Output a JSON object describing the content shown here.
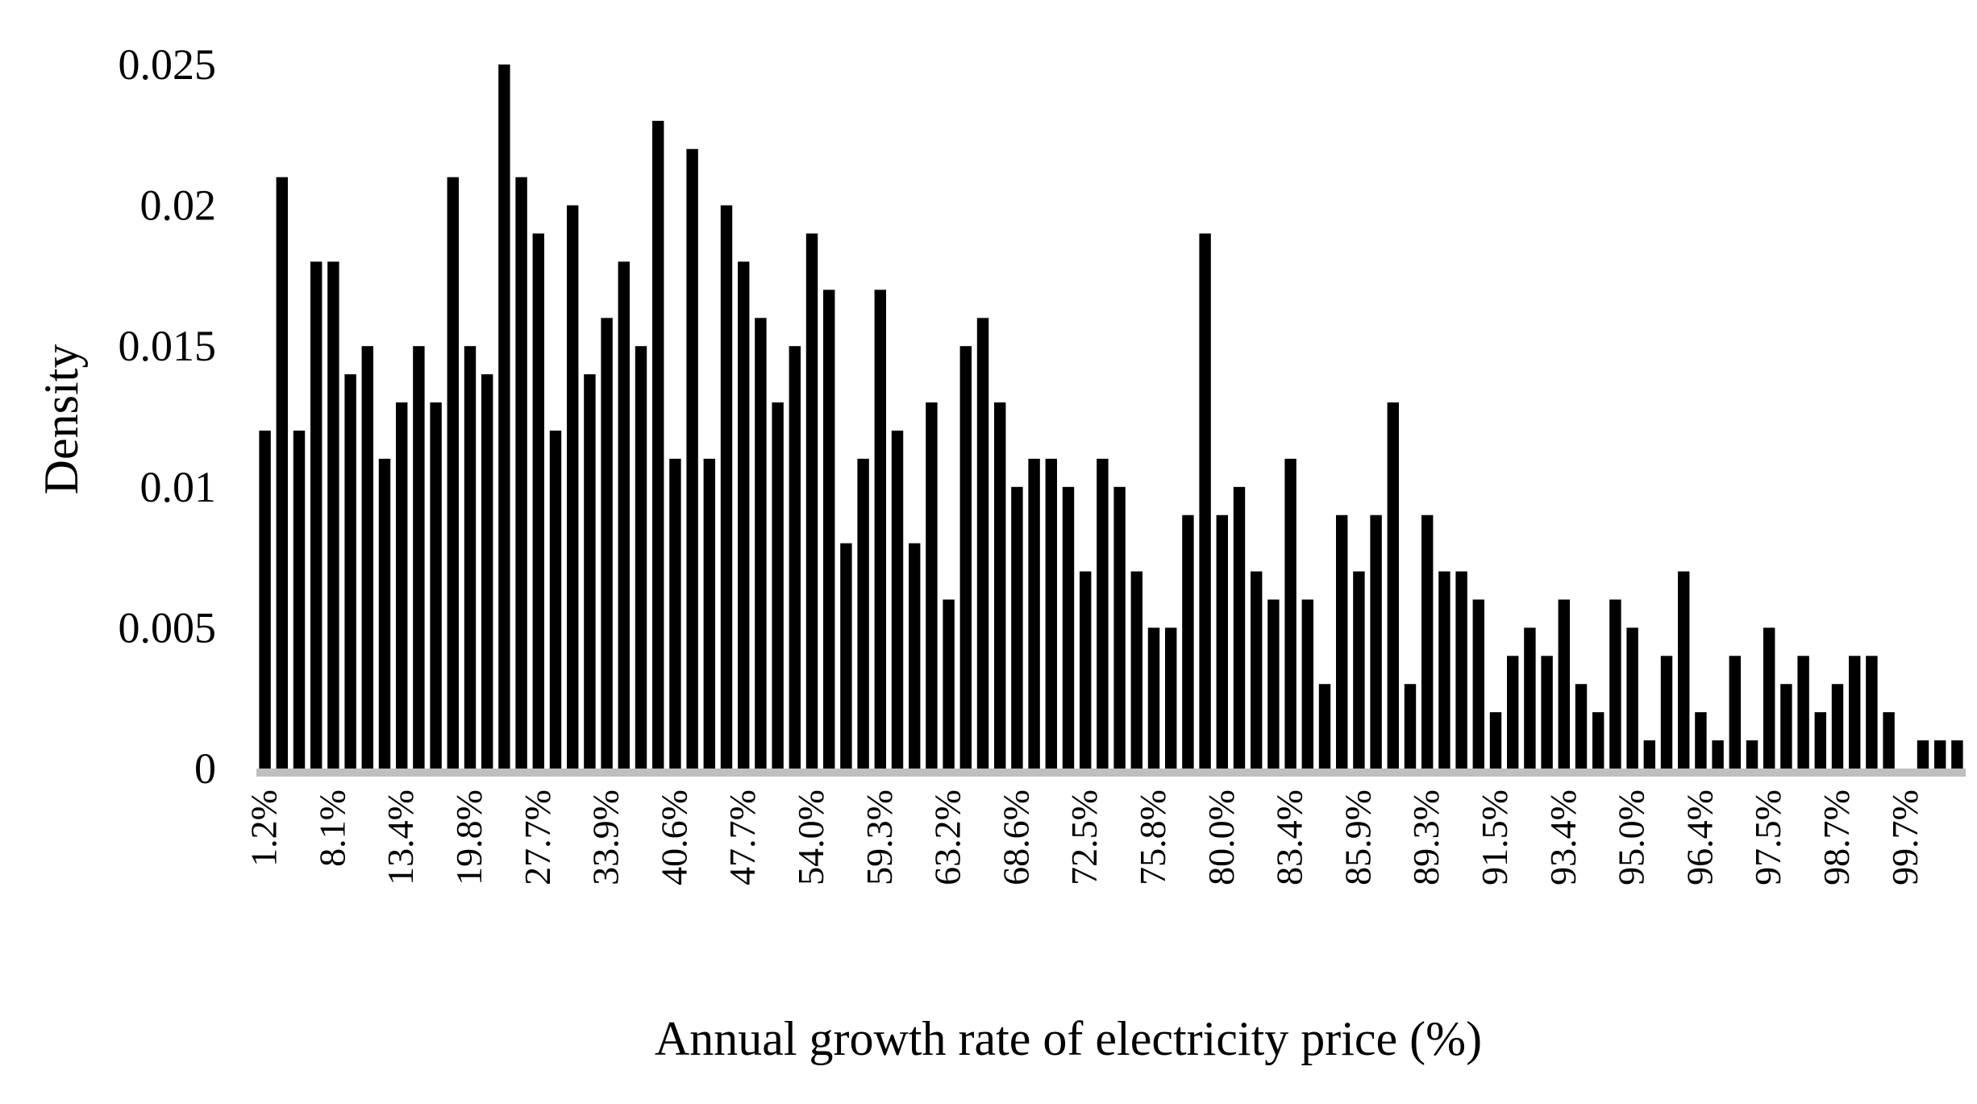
{
  "chart_data": {
    "type": "bar",
    "title": "",
    "xlabel": "Annual growth rate of electricity price (%)",
    "ylabel": "Density",
    "ylim": [
      0,
      0.025
    ],
    "yticks": [
      "0",
      "0.005",
      "0.01",
      "0.015",
      "0.02",
      "0.025"
    ],
    "ytick_values": [
      0,
      0.005,
      0.01,
      0.015,
      0.02,
      0.025
    ],
    "xtick_labels": [
      "1.2%",
      "8.1%",
      "13.4%",
      "19.8%",
      "27.7%",
      "33.9%",
      "40.6%",
      "47.7%",
      "54.0%",
      "59.3%",
      "63.2%",
      "68.6%",
      "72.5%",
      "75.8%",
      "80.0%",
      "83.4%",
      "85.9%",
      "89.3%",
      "91.5%",
      "93.4%",
      "95.0%",
      "96.4%",
      "97.5%",
      "98.7%",
      "99.7%"
    ],
    "label_every": 4,
    "values": [
      0.012,
      0.021,
      0.012,
      0.018,
      0.018,
      0.014,
      0.015,
      0.011,
      0.013,
      0.015,
      0.013,
      0.021,
      0.015,
      0.014,
      0.025,
      0.021,
      0.019,
      0.012,
      0.02,
      0.014,
      0.016,
      0.018,
      0.015,
      0.023,
      0.011,
      0.022,
      0.011,
      0.02,
      0.018,
      0.016,
      0.013,
      0.015,
      0.019,
      0.017,
      0.008,
      0.011,
      0.017,
      0.012,
      0.008,
      0.013,
      0.006,
      0.015,
      0.016,
      0.013,
      0.01,
      0.011,
      0.011,
      0.01,
      0.007,
      0.011,
      0.01,
      0.007,
      0.005,
      0.005,
      0.009,
      0.019,
      0.009,
      0.01,
      0.007,
      0.006,
      0.011,
      0.006,
      0.003,
      0.009,
      0.007,
      0.009,
      0.013,
      0.003,
      0.009,
      0.007,
      0.007,
      0.006,
      0.002,
      0.004,
      0.005,
      0.004,
      0.006,
      0.003,
      0.002,
      0.006,
      0.005,
      0.001,
      0.004,
      0.007,
      0.002,
      0.001,
      0.004,
      0.001,
      0.005,
      0.003,
      0.004,
      0.002,
      0.003,
      0.004,
      0.004,
      0.002,
      0,
      0.001,
      0.001,
      0.001
    ],
    "colors": {
      "bar": "#000000",
      "axis": "#bfbfbf"
    },
    "grid": false,
    "legend": "none"
  }
}
